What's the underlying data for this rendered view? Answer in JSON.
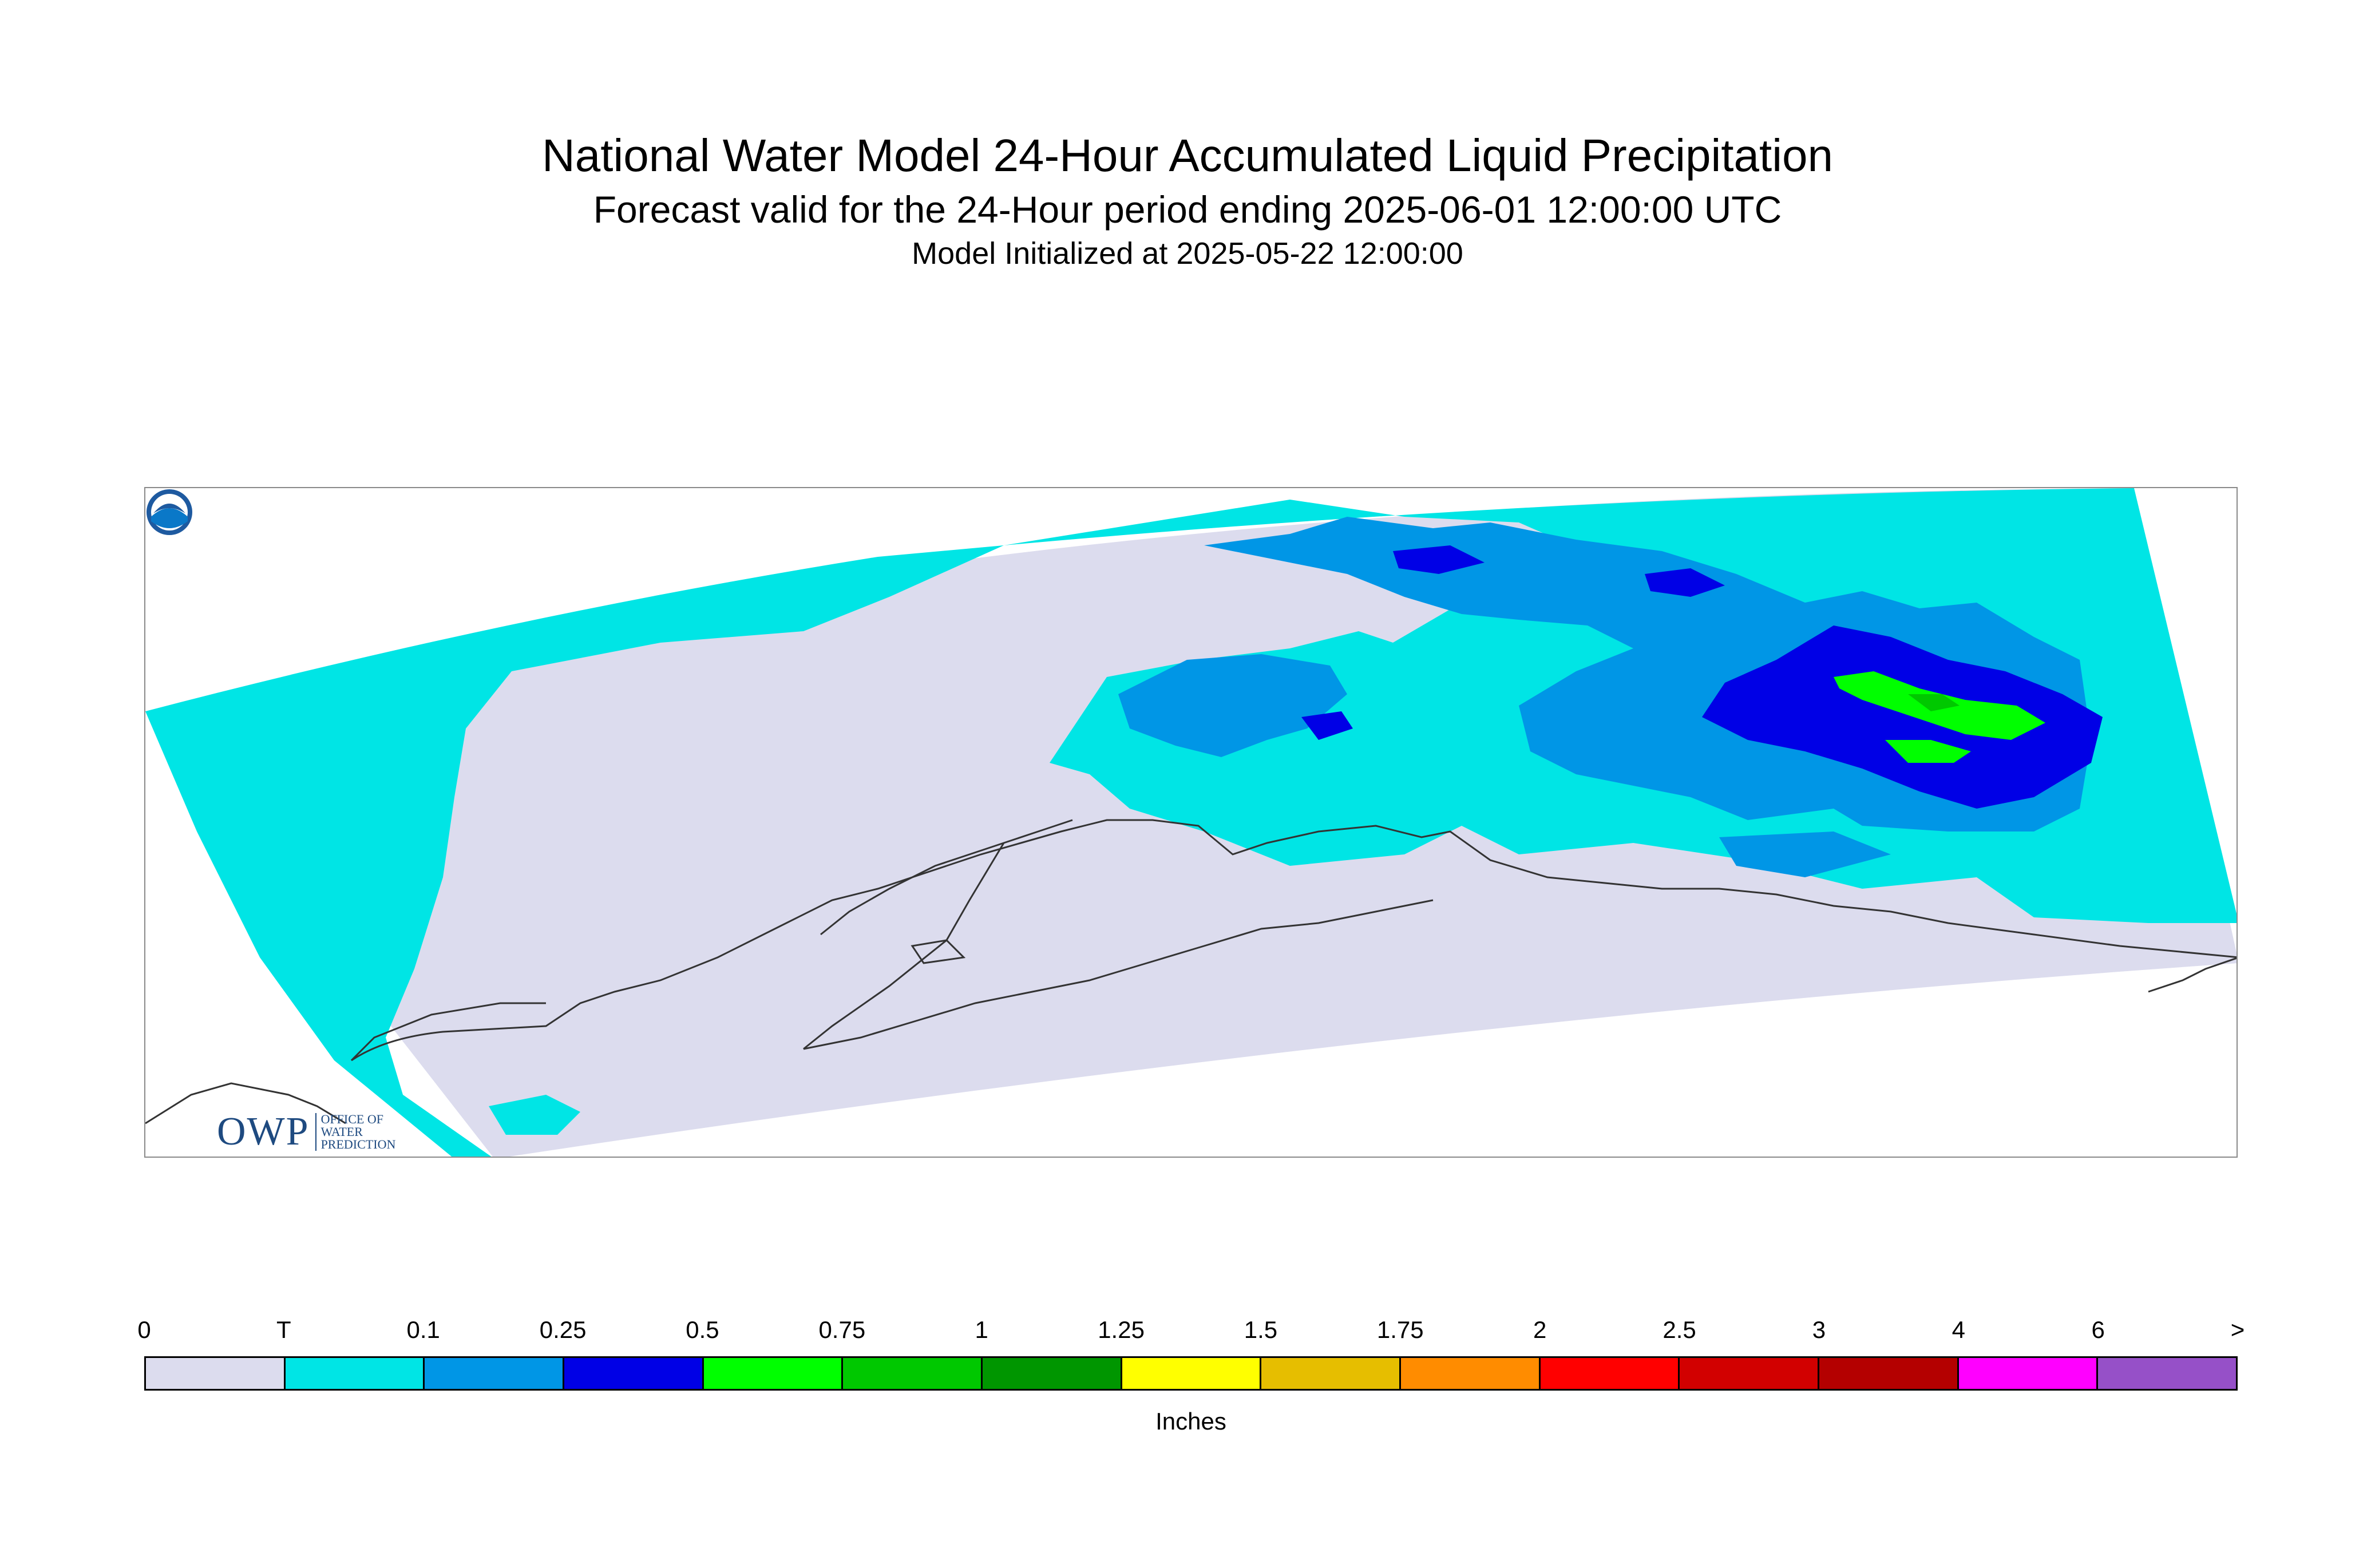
{
  "title": "National Water Model 24-Hour Accumulated Liquid Precipitation",
  "subtitle": "Forecast valid for the 24-Hour period ending 2025-06-01 12:00:00 UTC",
  "init_line": "Model Initialized at 2025-05-22 12:00:00",
  "logos": {
    "owp_mark": "OWP",
    "owp_sub": [
      "OFFICE OF",
      "WATER",
      "PREDICTION"
    ],
    "noaa_mark": "NOAA"
  },
  "legend": {
    "ticks": [
      "0",
      "T",
      "0.1",
      "0.25",
      "0.5",
      "0.75",
      "1",
      "1.25",
      "1.5",
      "1.75",
      "2",
      "2.5",
      "3",
      "4",
      "6",
      ">"
    ],
    "colors": [
      "#dcdcee",
      "#00e5e5",
      "#0096e6",
      "#0000e6",
      "#00ff00",
      "#00c800",
      "#009600",
      "#ffff00",
      "#e6be00",
      "#ff8c00",
      "#ff0000",
      "#d20000",
      "#b40000",
      "#ff00ff",
      "#9650c8"
    ],
    "units": "Inches"
  },
  "map": {
    "icons": [
      "coastline",
      "precipitation-field"
    ],
    "palette": {
      "none": "#dcdcee",
      "trace": "#00e5e5",
      "light": "#0096e6",
      "moderate": "#0000e6",
      "heavy": "#00ff00",
      "heavier": "#00c800"
    }
  }
}
